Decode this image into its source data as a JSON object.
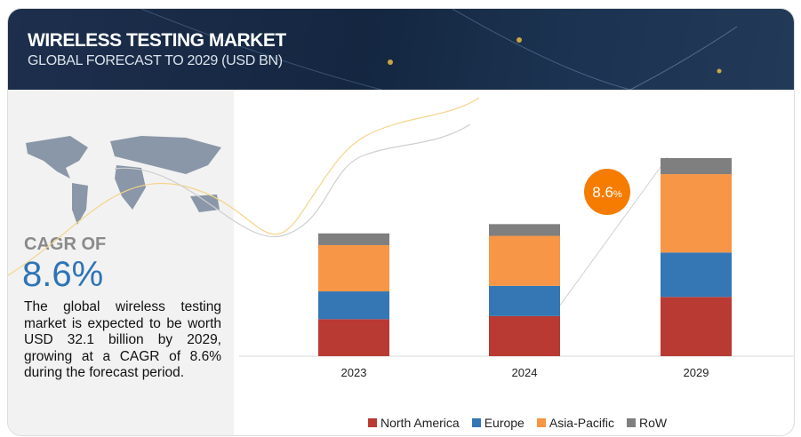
{
  "header": {
    "title": "WIRELESS TESTING MARKET",
    "subtitle": "GLOBAL FORECAST TO 2029 (USD BN)"
  },
  "left": {
    "cagr_label": "CAGR OF",
    "cagr_value": "8.6%",
    "description": "The global wireless testing market is expected to be worth USD 32.1 billion by 2029, growing at a CAGR of 8.6% during the forecast period."
  },
  "badge": {
    "value": "8.6",
    "unit": "%"
  },
  "chart_data": {
    "type": "bar",
    "stacked": true,
    "categories": [
      "2023",
      "2024",
      "2029"
    ],
    "series": [
      {
        "name": "North America",
        "color": "#b83a33",
        "values": [
          6.0,
          6.5,
          9.6
        ]
      },
      {
        "name": "Europe",
        "color": "#3477b4",
        "values": [
          4.5,
          4.9,
          7.2
        ]
      },
      {
        "name": "Asia-Pacific",
        "color": "#f79646",
        "values": [
          7.5,
          8.1,
          12.7
        ]
      },
      {
        "name": "RoW",
        "color": "#7f7f7f",
        "values": [
          1.9,
          1.9,
          2.6
        ]
      }
    ],
    "ylim": [
      0,
      34
    ],
    "legend": "bottom"
  }
}
